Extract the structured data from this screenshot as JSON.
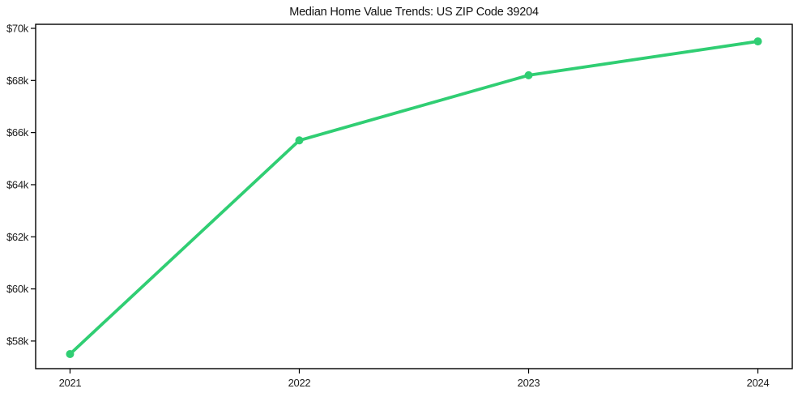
{
  "chart_data": {
    "type": "line",
    "title": "Median Home Value Trends: US ZIP Code 39204",
    "xlabel": "",
    "ylabel": "",
    "x": [
      2021,
      2022,
      2023,
      2024
    ],
    "values_usd": [
      57500,
      65700,
      68200,
      69500
    ],
    "x_ticks": {
      "values": [
        2021,
        2022,
        2023,
        2024
      ],
      "labels": [
        "2021",
        "2022",
        "2023",
        "2024"
      ]
    },
    "y_ticks": {
      "values_usd": [
        58000,
        60000,
        62000,
        64000,
        66000,
        68000,
        70000
      ],
      "labels": [
        "$58k",
        "$60k",
        "$62k",
        "$64k",
        "$66k",
        "$68k",
        "$70k"
      ]
    },
    "xlim": [
      2020.85,
      2024.15
    ],
    "ylim_usd": [
      56940,
      70155
    ],
    "grid": false,
    "legend": false,
    "colors": {
      "line": "#30ce73",
      "marker": "#30ce73",
      "axis": "#000000",
      "tick_text": "#1a1a1a",
      "background": "#ffffff"
    }
  }
}
